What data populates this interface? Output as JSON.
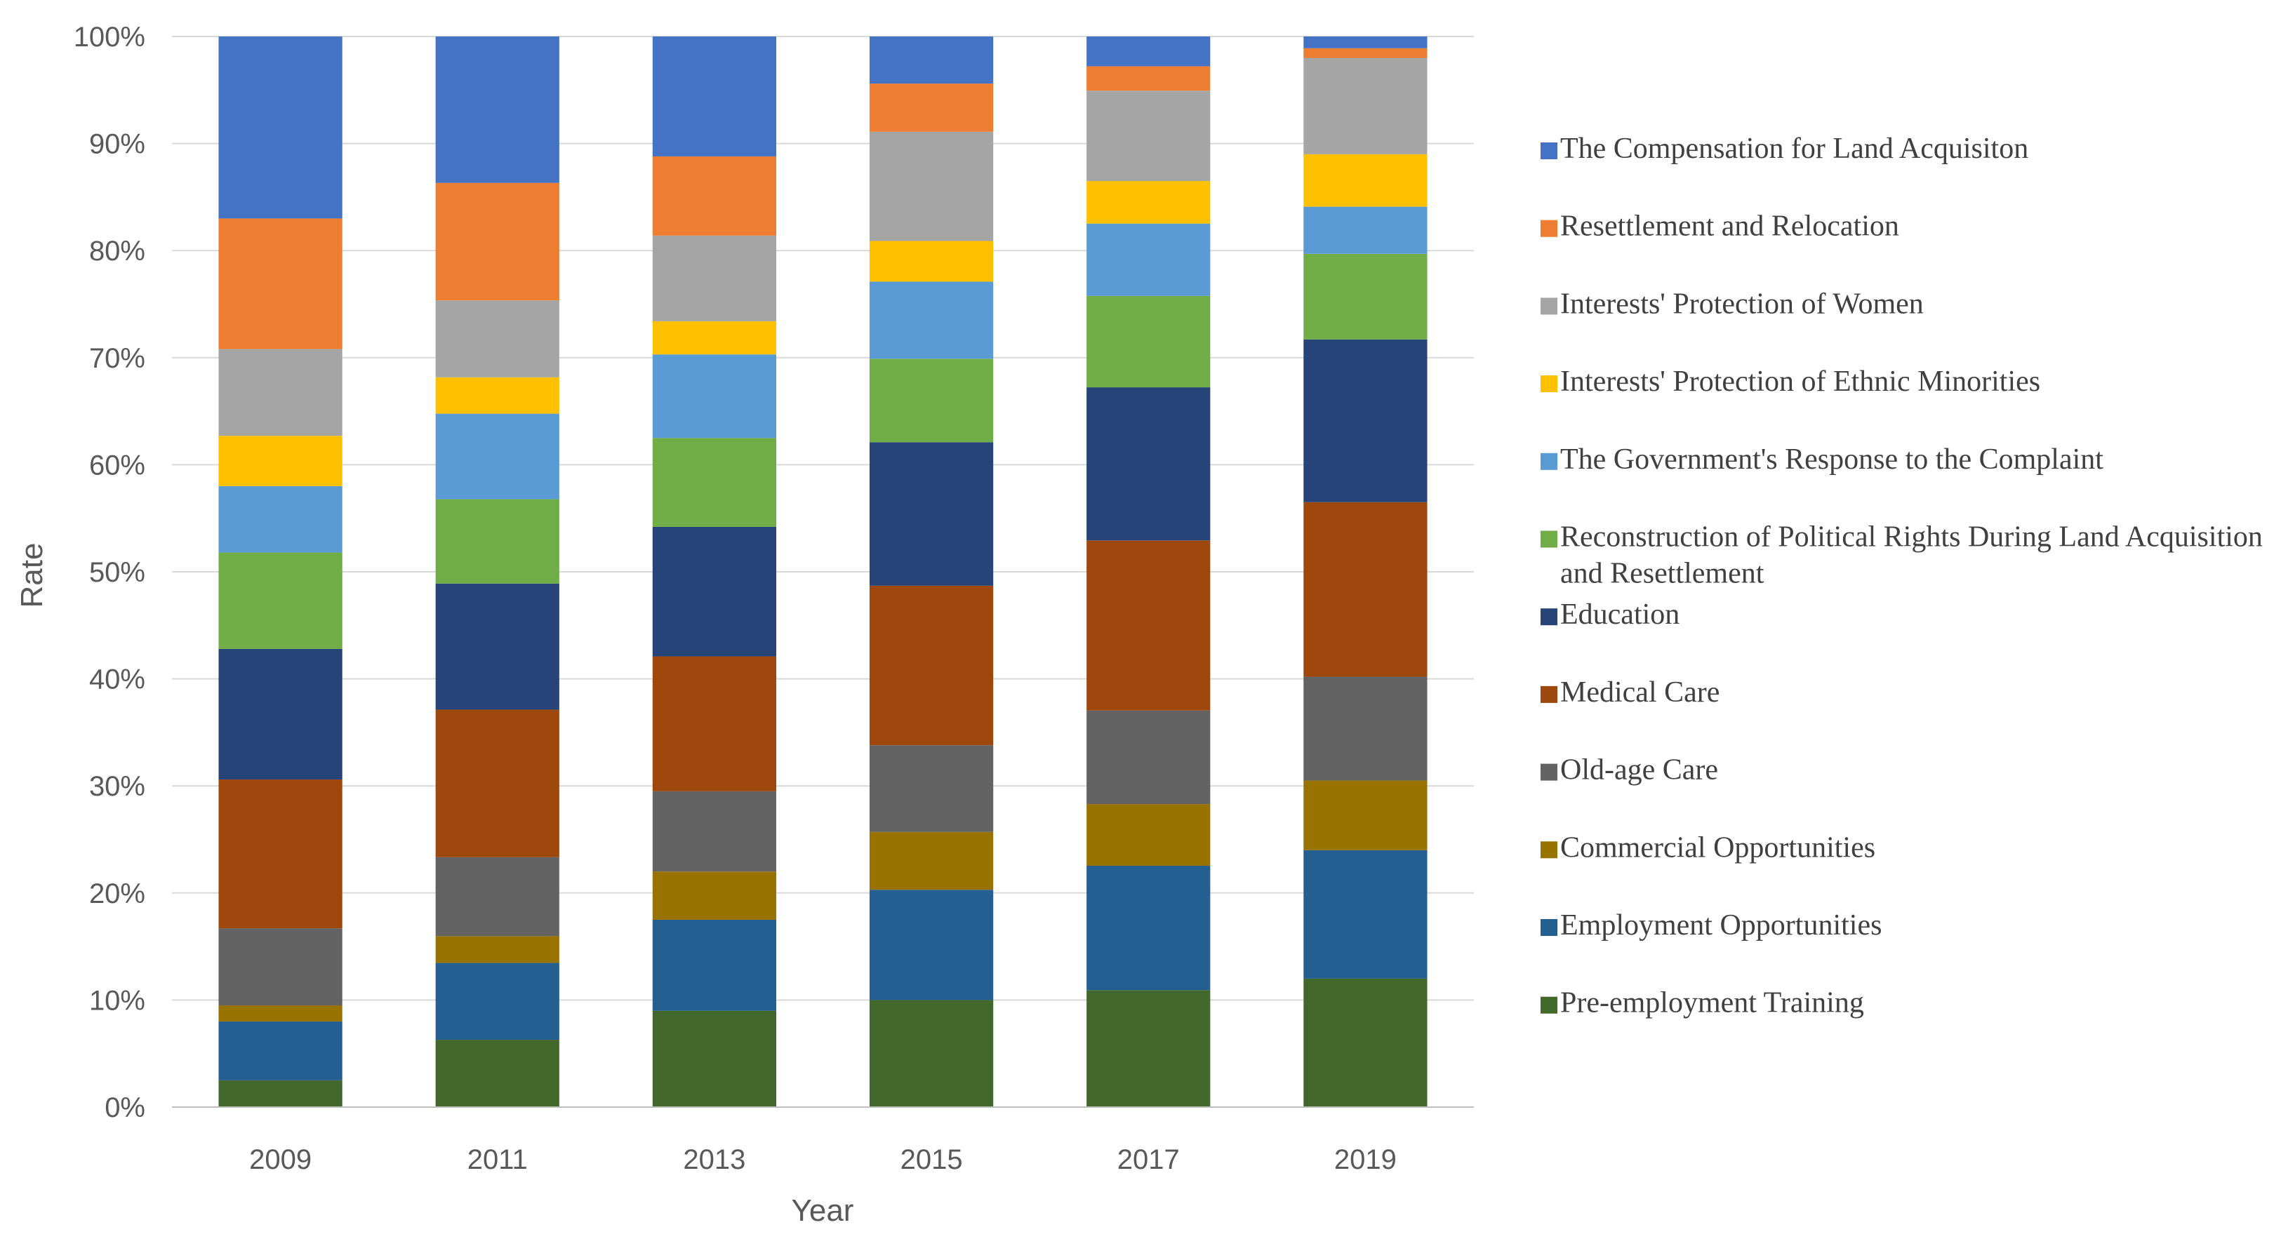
{
  "chart_data": {
    "type": "bar",
    "stacked": true,
    "percent_stacked": true,
    "title": "",
    "xlabel": "Year",
    "ylabel": "Rate",
    "ylim": [
      0,
      100
    ],
    "y_ticks": [
      "0%",
      "10%",
      "20%",
      "30%",
      "40%",
      "50%",
      "60%",
      "70%",
      "80%",
      "90%",
      "100%"
    ],
    "grid": true,
    "legend_position": "right",
    "categories": [
      "2009",
      "2011",
      "2013",
      "2015",
      "2017",
      "2019"
    ],
    "series": [
      {
        "name": "Pre-employment Training",
        "color": "#43682b",
        "values": [
          2.5,
          6.3,
          9.0,
          10.0,
          11.0,
          12.0
        ]
      },
      {
        "name": "Employment Opportunities",
        "color": "#255e91",
        "values": [
          5.5,
          7.2,
          8.5,
          10.3,
          11.7,
          12.0
        ]
      },
      {
        "name": "Commercial Opportunities",
        "color": "#997300",
        "values": [
          1.5,
          2.5,
          4.5,
          5.4,
          5.8,
          6.5
        ]
      },
      {
        "name": "Old-age Care",
        "color": "#636363",
        "values": [
          7.2,
          7.4,
          7.5,
          8.1,
          8.8,
          9.7
        ]
      },
      {
        "name": "Medical Care",
        "color": "#9e480e",
        "values": [
          13.9,
          13.8,
          12.6,
          14.9,
          16.0,
          16.3
        ]
      },
      {
        "name": "Education",
        "color": "#264478",
        "values": [
          12.2,
          11.8,
          12.1,
          13.4,
          14.4,
          15.2
        ]
      },
      {
        "name": "Reconstruction of Political Rights During Land Acquisition and Resettlement",
        "color": "#70ad47",
        "values": [
          9.0,
          7.9,
          8.3,
          7.8,
          8.6,
          8.0
        ]
      },
      {
        "name": "The Government's Response to the Complaint",
        "color": "#5b9bd5",
        "values": [
          6.2,
          8.0,
          7.8,
          7.2,
          6.8,
          4.4
        ]
      },
      {
        "name": "Interests' Protection of Ethnic Minorities",
        "color": "#ffc000",
        "values": [
          4.7,
          3.4,
          3.1,
          3.8,
          4.0,
          4.9
        ]
      },
      {
        "name": "Interests' Protection of Women",
        "color": "#a5a5a5",
        "values": [
          8.1,
          7.2,
          8.0,
          10.2,
          8.5,
          9.0
        ]
      },
      {
        "name": "Resettlement and Relocation",
        "color": "#ed7d31",
        "values": [
          12.2,
          11.0,
          7.4,
          4.5,
          2.3,
          0.9
        ]
      },
      {
        "name": "The Compensation for Land Acquisiton",
        "color": "#4472c4",
        "values": [
          17.0,
          13.7,
          11.2,
          4.4,
          2.8,
          1.1
        ]
      }
    ],
    "legend": [
      {
        "label": "The Compensation for Land Acquisiton",
        "color": "#4472c4",
        "lines": [
          "The Compensation for Land Acquisiton"
        ]
      },
      {
        "label": "Resettlement and Relocation",
        "color": "#ed7d31",
        "lines": [
          "Resettlement and Relocation"
        ]
      },
      {
        "label": "Interests' Protection of Women",
        "color": "#a5a5a5",
        "lines": [
          "Interests' Protection of Women"
        ]
      },
      {
        "label": "Interests' Protection of Ethnic Minorities",
        "color": "#ffc000",
        "lines": [
          "Interests' Protection of Ethnic Minorities"
        ]
      },
      {
        "label": "The Government's Response to the Complaint",
        "color": "#5b9bd5",
        "lines": [
          "The Government's Response to the Complaint"
        ]
      },
      {
        "label": "Reconstruction of Political Rights During Land Acquisition and Resettlement",
        "color": "#70ad47",
        "lines": [
          "Reconstruction of Political Rights During Land Acquisition",
          "and Resettlement"
        ]
      },
      {
        "label": "Education",
        "color": "#264478",
        "lines": [
          "Education"
        ]
      },
      {
        "label": "Medical Care",
        "color": "#9e480e",
        "lines": [
          "Medical Care"
        ]
      },
      {
        "label": "Old-age Care",
        "color": "#636363",
        "lines": [
          "Old-age Care"
        ]
      },
      {
        "label": "Commercial Opportunities",
        "color": "#997300",
        "lines": [
          "Commercial Opportunities"
        ]
      },
      {
        "label": "Employment Opportunities",
        "color": "#255e91",
        "lines": [
          "Employment Opportunities"
        ]
      },
      {
        "label": "Pre-employment Training",
        "color": "#43682b",
        "lines": [
          "Pre-employment Training"
        ]
      }
    ]
  },
  "colors": {
    "gridline": "#d9d9d9",
    "axis": "#bfbfbf",
    "text": "#595959"
  }
}
